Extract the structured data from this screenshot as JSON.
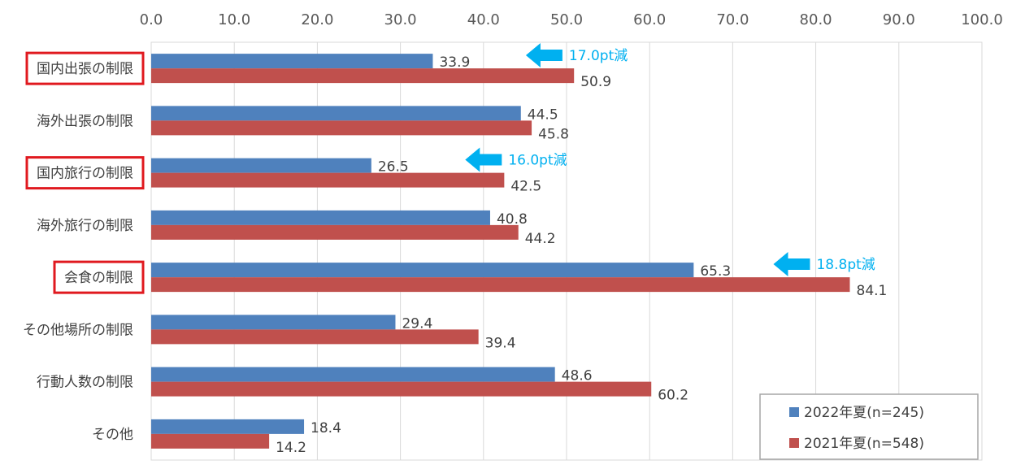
{
  "chart_data": {
    "type": "bar",
    "orientation": "horizontal",
    "title": "",
    "xlabel": "",
    "ylabel": "",
    "xlim": [
      0,
      100
    ],
    "ticks": [
      "0.0",
      "10.0",
      "20.0",
      "30.0",
      "40.0",
      "50.0",
      "60.0",
      "70.0",
      "80.0",
      "90.0",
      "100.0"
    ],
    "grid": true,
    "categories": [
      "国内出張の制限",
      "海外出張の制限",
      "国内旅行の制限",
      "海外旅行の制限",
      "会食の制限",
      "その他場所の制限",
      "行動人数の制限",
      "その他"
    ],
    "highlighted": [
      true,
      false,
      true,
      false,
      true,
      false,
      false,
      false
    ],
    "series": [
      {
        "name": "2022年夏(n=245)",
        "color": "#4f81bd",
        "values": [
          33.9,
          44.5,
          26.5,
          40.8,
          65.3,
          29.4,
          48.6,
          18.4
        ],
        "labels": [
          "33.9",
          "44.5",
          "26.5",
          "40.8",
          "65.3",
          "29.4",
          "48.6",
          "18.4"
        ]
      },
      {
        "name": "2021年夏(n=548)",
        "color": "#c0504d",
        "values": [
          50.9,
          45.8,
          42.5,
          44.2,
          84.1,
          39.4,
          60.2,
          14.2
        ],
        "labels": [
          "50.9",
          "45.8",
          "42.5",
          "44.2",
          "84.1",
          "39.4",
          "60.2",
          "14.2"
        ]
      }
    ],
    "annotations": [
      {
        "category_index": 0,
        "text": "17.0pt減",
        "arrow_tip_value": 45.1
      },
      {
        "category_index": 2,
        "text": "16.0pt減",
        "arrow_tip_value": 37.8
      },
      {
        "category_index": 4,
        "text": "18.8pt減",
        "arrow_tip_value": 74.9
      }
    ],
    "legend_position": "bottom-right",
    "colors": {
      "annotation": "#00b0f0",
      "highlight_box": "#e0191f",
      "grid": "#d9d9d9"
    }
  }
}
